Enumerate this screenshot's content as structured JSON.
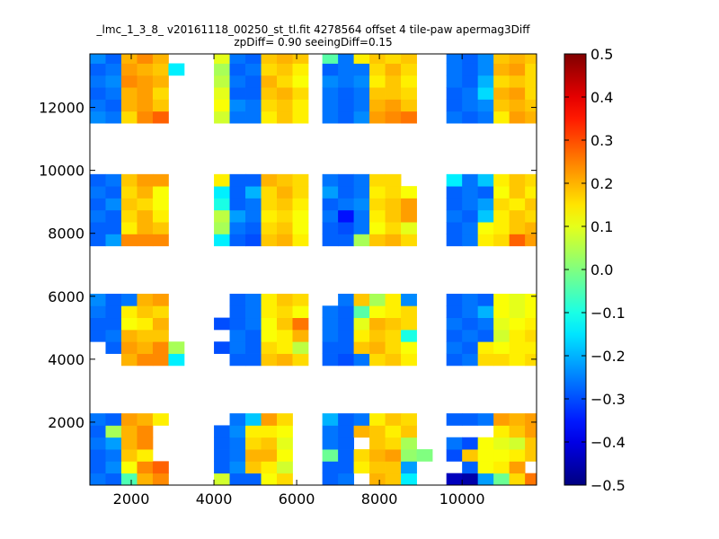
{
  "chart_data": {
    "type": "heatmap",
    "title": "_lmc_1_3_8_ v20161118_00250_st_tl.fit 4278564 offset 4 tile-paw apermag3Diff",
    "subtitle": "zpDiff= 0.90 seeingDiff=0.15",
    "xlabel": "",
    "ylabel": "",
    "xlim": [
      1000,
      11800
    ],
    "ylim": [
      0,
      13700
    ],
    "xticks": [
      2000,
      4000,
      6000,
      8000,
      10000
    ],
    "yticks": [
      2000,
      4000,
      6000,
      8000,
      10000,
      12000
    ],
    "xtick_labels": [
      "2000",
      "4000",
      "6000",
      "8000",
      "10000"
    ],
    "ytick_labels": [
      "2000",
      "4000",
      "6000",
      "8000",
      "10000",
      "12000"
    ],
    "colormap": "jet",
    "clim": [
      -0.5,
      0.5
    ],
    "colorbar_ticks": [
      0.5,
      0.4,
      0.3,
      0.2,
      0.1,
      0.0,
      -0.1,
      -0.2,
      -0.3,
      -0.4,
      -0.5
    ],
    "colorbar_labels": [
      "0.5",
      "0.4",
      "0.3",
      "0.2",
      "0.1",
      "0.0",
      "−0.1",
      "−0.2",
      "−0.3",
      "−0.4",
      "−0.5"
    ],
    "cell_size": 380,
    "col_x0": [
      1000,
      1380,
      1760,
      2140,
      2520,
      2900,
      3620,
      4000,
      4380,
      4760,
      5140,
      5520,
      5900,
      6620,
      7000,
      7380,
      7760,
      8140,
      8520,
      8900,
      9620,
      10000,
      10380,
      10760,
      11140,
      11520
    ],
    "row_y0": [
      0,
      380,
      760,
      1140,
      1520,
      1900,
      3800,
      4180,
      4560,
      4940,
      5320,
      5700,
      7600,
      7980,
      8360,
      8740,
      9120,
      9500,
      11500,
      11880,
      12260,
      12640,
      13020,
      13400
    ],
    "grid": [
      [
        -0.26,
        -0.28,
        -0.05,
        0.2,
        0.24,
        null,
        null,
        0.08,
        -0.28,
        -0.28,
        0.12,
        0.16,
        null,
        -0.28,
        -0.26,
        null,
        0.2,
        0.18,
        -0.14,
        null,
        -0.44,
        -0.46,
        -0.22,
        -0.02,
        0.16,
        0.26
      ],
      [
        -0.28,
        -0.24,
        0.12,
        0.24,
        0.28,
        null,
        null,
        -0.28,
        -0.24,
        0.18,
        0.14,
        0.08,
        null,
        -0.28,
        -0.28,
        0.14,
        0.18,
        0.18,
        -0.22,
        null,
        null,
        -0.28,
        0.12,
        0.14,
        0.22,
        null
      ],
      [
        -0.28,
        -0.26,
        0.18,
        0.14,
        null,
        null,
        null,
        -0.28,
        -0.26,
        0.2,
        0.2,
        0.12,
        null,
        -0.02,
        -0.28,
        0.16,
        0.2,
        0.22,
        0.02,
        0.0,
        -0.3,
        0.18,
        0.12,
        0.12,
        0.14,
        0.18
      ],
      [
        -0.26,
        -0.22,
        0.2,
        0.24,
        null,
        null,
        null,
        -0.28,
        -0.26,
        0.16,
        0.18,
        0.1,
        null,
        -0.26,
        -0.28,
        null,
        0.18,
        0.16,
        0.04,
        null,
        -0.26,
        -0.3,
        0.12,
        0.1,
        0.08,
        0.18
      ],
      [
        -0.28,
        0.04,
        0.2,
        0.24,
        null,
        null,
        null,
        -0.28,
        -0.24,
        0.14,
        0.14,
        0.12,
        null,
        -0.26,
        -0.28,
        0.2,
        0.18,
        0.14,
        0.18,
        null,
        null,
        null,
        null,
        0.14,
        0.18,
        0.22
      ],
      [
        -0.26,
        -0.28,
        0.22,
        0.2,
        0.14,
        null,
        null,
        null,
        -0.26,
        -0.18,
        0.22,
        0.16,
        null,
        -0.2,
        -0.28,
        -0.26,
        0.14,
        0.18,
        0.16,
        null,
        -0.28,
        -0.28,
        -0.26,
        0.22,
        0.2,
        0.22
      ],
      [
        null,
        null,
        0.2,
        0.24,
        0.24,
        -0.14,
        null,
        null,
        -0.28,
        -0.28,
        0.18,
        0.2,
        0.16,
        -0.28,
        -0.3,
        -0.26,
        0.16,
        0.18,
        0.14,
        null,
        -0.28,
        -0.26,
        0.16,
        0.16,
        0.14,
        0.16
      ],
      [
        null,
        -0.28,
        0.22,
        0.2,
        0.24,
        0.04,
        null,
        -0.3,
        -0.26,
        -0.28,
        0.16,
        0.14,
        0.06,
        -0.28,
        -0.28,
        0.18,
        0.2,
        0.16,
        0.12,
        null,
        -0.26,
        -0.28,
        0.14,
        0.12,
        0.14,
        0.14
      ],
      [
        -0.28,
        -0.26,
        0.2,
        0.18,
        0.18,
        null,
        null,
        null,
        -0.26,
        -0.28,
        0.12,
        0.14,
        0.2,
        -0.26,
        -0.28,
        0.14,
        0.18,
        0.16,
        -0.1,
        null,
        -0.28,
        -0.26,
        -0.28,
        0.08,
        0.14,
        0.16
      ],
      [
        -0.28,
        -0.28,
        0.12,
        0.14,
        0.2,
        null,
        null,
        -0.3,
        -0.28,
        -0.26,
        0.12,
        0.18,
        0.26,
        -0.26,
        -0.28,
        0.1,
        0.2,
        0.18,
        0.16,
        null,
        -0.26,
        -0.28,
        -0.26,
        0.1,
        0.12,
        0.14
      ],
      [
        -0.26,
        -0.28,
        0.14,
        0.18,
        0.16,
        null,
        null,
        null,
        -0.28,
        -0.26,
        0.14,
        0.16,
        0.12,
        -0.26,
        -0.28,
        -0.04,
        0.12,
        0.14,
        0.16,
        null,
        -0.28,
        -0.26,
        -0.2,
        0.12,
        0.1,
        0.12
      ],
      [
        -0.24,
        -0.28,
        -0.26,
        0.2,
        0.22,
        null,
        null,
        null,
        -0.28,
        -0.26,
        0.14,
        0.18,
        0.16,
        null,
        -0.26,
        0.18,
        0.04,
        0.14,
        -0.24,
        null,
        -0.28,
        -0.26,
        -0.28,
        0.12,
        0.1,
        0.12
      ],
      [
        -0.28,
        -0.22,
        0.24,
        0.24,
        0.24,
        null,
        null,
        -0.14,
        -0.28,
        -0.3,
        0.18,
        0.2,
        0.14,
        -0.28,
        -0.28,
        0.04,
        0.18,
        0.2,
        0.16,
        null,
        -0.28,
        -0.26,
        0.14,
        0.16,
        0.28,
        0.22
      ],
      [
        -0.28,
        -0.28,
        0.14,
        0.2,
        0.18,
        null,
        null,
        0.04,
        -0.26,
        -0.28,
        0.16,
        0.18,
        0.12,
        -0.28,
        -0.3,
        -0.26,
        0.12,
        0.16,
        0.1,
        null,
        -0.28,
        -0.26,
        0.12,
        0.14,
        0.18,
        0.2
      ],
      [
        -0.26,
        -0.28,
        0.16,
        0.2,
        0.14,
        null,
        null,
        0.06,
        -0.22,
        -0.26,
        0.14,
        0.16,
        0.12,
        -0.26,
        -0.36,
        -0.26,
        0.14,
        0.18,
        0.22,
        null,
        -0.26,
        -0.28,
        -0.18,
        0.14,
        0.18,
        0.16
      ],
      [
        -0.28,
        -0.24,
        0.18,
        0.16,
        0.12,
        null,
        null,
        -0.1,
        -0.28,
        -0.26,
        0.16,
        0.18,
        0.14,
        -0.28,
        -0.26,
        -0.24,
        0.16,
        0.18,
        0.22,
        null,
        -0.28,
        -0.26,
        -0.22,
        0.16,
        0.14,
        0.18
      ],
      [
        -0.26,
        -0.28,
        0.16,
        0.2,
        0.12,
        null,
        null,
        -0.14,
        -0.28,
        -0.2,
        0.16,
        0.2,
        0.16,
        -0.22,
        -0.28,
        -0.26,
        0.14,
        0.16,
        0.12,
        null,
        -0.28,
        -0.26,
        -0.28,
        0.12,
        0.18,
        0.14
      ],
      [
        -0.28,
        -0.26,
        0.18,
        0.22,
        0.22,
        null,
        null,
        0.14,
        -0.28,
        -0.28,
        0.2,
        0.18,
        0.16,
        -0.26,
        -0.28,
        -0.26,
        0.16,
        0.16,
        null,
        null,
        -0.14,
        -0.26,
        -0.18,
        0.14,
        0.18,
        0.16
      ],
      [
        -0.24,
        -0.26,
        0.16,
        0.24,
        0.28,
        null,
        null,
        0.08,
        -0.26,
        -0.26,
        0.14,
        0.18,
        0.14,
        -0.26,
        -0.28,
        -0.24,
        0.22,
        0.24,
        0.26,
        null,
        -0.26,
        -0.28,
        -0.26,
        0.14,
        0.22,
        0.2
      ],
      [
        -0.26,
        -0.28,
        0.2,
        0.22,
        0.18,
        null,
        null,
        0.12,
        -0.24,
        -0.26,
        0.16,
        0.18,
        0.14,
        -0.26,
        -0.28,
        -0.26,
        0.2,
        0.22,
        0.18,
        null,
        -0.28,
        -0.26,
        -0.24,
        0.18,
        0.2,
        0.18
      ],
      [
        -0.28,
        -0.26,
        0.2,
        0.22,
        0.16,
        null,
        null,
        0.1,
        -0.28,
        -0.28,
        0.18,
        0.2,
        0.16,
        -0.26,
        -0.28,
        -0.26,
        0.18,
        0.18,
        0.16,
        null,
        -0.28,
        -0.26,
        -0.16,
        0.2,
        0.22,
        0.16
      ],
      [
        -0.26,
        -0.24,
        0.24,
        0.22,
        0.2,
        null,
        null,
        0.06,
        -0.26,
        -0.28,
        0.2,
        0.16,
        0.12,
        -0.24,
        -0.26,
        -0.24,
        0.14,
        0.18,
        0.14,
        null,
        -0.26,
        -0.28,
        -0.2,
        0.16,
        0.18,
        0.16
      ],
      [
        -0.28,
        -0.26,
        0.22,
        0.2,
        0.18,
        -0.14,
        null,
        0.04,
        -0.28,
        -0.26,
        0.16,
        0.18,
        0.14,
        -0.28,
        -0.26,
        -0.26,
        0.16,
        0.2,
        0.16,
        null,
        -0.26,
        -0.28,
        -0.24,
        0.2,
        0.22,
        0.16
      ],
      [
        -0.24,
        -0.28,
        0.2,
        0.24,
        0.2,
        null,
        null,
        0.1,
        -0.26,
        -0.28,
        0.18,
        0.2,
        0.18,
        -0.04,
        -0.26,
        0.14,
        0.18,
        0.16,
        0.18,
        null,
        -0.26,
        -0.28,
        -0.24,
        0.18,
        0.2,
        0.18
      ]
    ]
  }
}
